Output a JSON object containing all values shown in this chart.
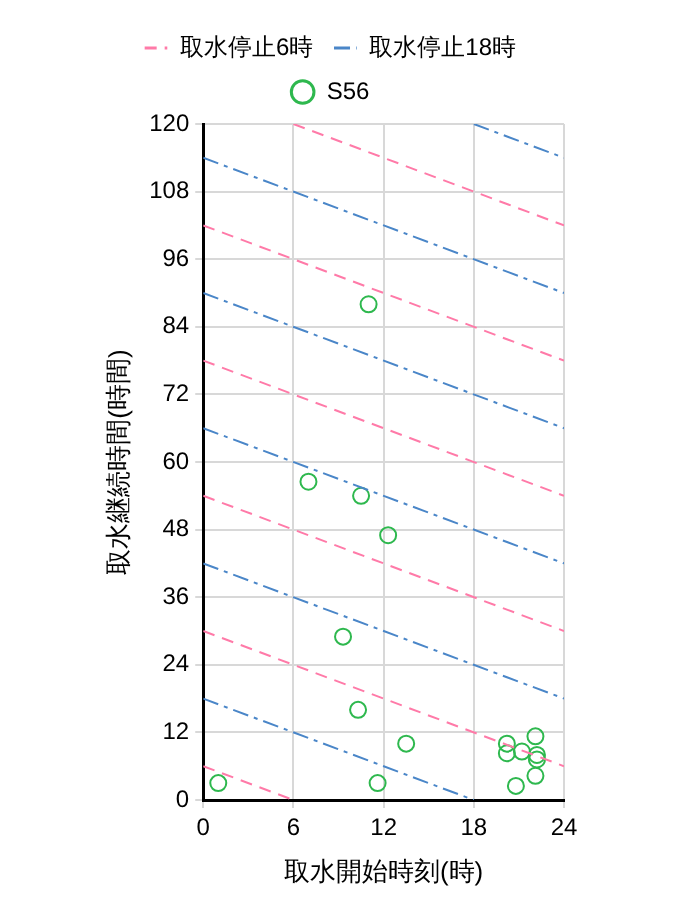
{
  "chart_data": {
    "type": "scatter",
    "xlabel": "取水開始時刻(時)",
    "ylabel": "取水継続時間(時間)",
    "xlim": [
      0,
      24
    ],
    "xticks": [
      0,
      6,
      12,
      18,
      24
    ],
    "ylim": [
      0,
      120
    ],
    "yticks": [
      0,
      12,
      24,
      36,
      48,
      60,
      72,
      84,
      96,
      108,
      120
    ],
    "grid": true,
    "legend": "top",
    "marker": "circle",
    "series": [
      {
        "name": "取水停止6時",
        "type": "line",
        "color": "#ff7aa8",
        "line_style": "dashed",
        "marker": "none",
        "x": [
          0,
          6
        ],
        "values": [
          6,
          0
        ]
      },
      {
        "type": "line",
        "color": "#ff7aa8",
        "line_style": "dashed",
        "marker": "none",
        "x": [
          0,
          24
        ],
        "values": [
          30,
          6
        ]
      },
      {
        "type": "line",
        "color": "#ff7aa8",
        "line_style": "dashed",
        "marker": "none",
        "x": [
          0,
          24
        ],
        "values": [
          54,
          30
        ]
      },
      {
        "type": "line",
        "color": "#ff7aa8",
        "line_style": "dashed",
        "marker": "none",
        "x": [
          0,
          24
        ],
        "values": [
          78,
          54
        ]
      },
      {
        "type": "line",
        "color": "#ff7aa8",
        "line_style": "dashed",
        "marker": "none",
        "x": [
          0,
          24
        ],
        "values": [
          102,
          78
        ]
      },
      {
        "type": "line",
        "color": "#ff7aa8",
        "line_style": "dashed",
        "marker": "none",
        "x": [
          6,
          24
        ],
        "values": [
          120,
          102
        ]
      },
      {
        "name": "取水停止18時",
        "type": "line",
        "color": "#4a86c8",
        "line_style": "dashdot",
        "marker": "none",
        "x": [
          0,
          18
        ],
        "values": [
          18,
          0
        ]
      },
      {
        "type": "line",
        "color": "#4a86c8",
        "line_style": "dashdot",
        "marker": "none",
        "x": [
          0,
          24
        ],
        "values": [
          42,
          18
        ]
      },
      {
        "type": "line",
        "color": "#4a86c8",
        "line_style": "dashdot",
        "marker": "none",
        "x": [
          0,
          24
        ],
        "values": [
          66,
          42
        ]
      },
      {
        "type": "line",
        "color": "#4a86c8",
        "line_style": "dashdot",
        "marker": "none",
        "x": [
          0,
          24
        ],
        "values": [
          90,
          66
        ]
      },
      {
        "type": "line",
        "color": "#4a86c8",
        "line_style": "dashdot",
        "marker": "none",
        "x": [
          0,
          24
        ],
        "values": [
          114,
          90
        ]
      },
      {
        "type": "line",
        "color": "#4a86c8",
        "line_style": "dashdot",
        "marker": "none",
        "x": [
          18,
          24
        ],
        "values": [
          120,
          114
        ]
      },
      {
        "name": "S56",
        "color": "#2eb84e",
        "x": [
          1,
          11,
          7,
          10.5,
          12.3,
          9.3,
          10.3,
          13.5,
          11.6,
          20.2,
          20.2,
          21.2,
          22.1,
          22.2,
          22.2,
          22.1,
          20.8
        ],
        "values": [
          3,
          88,
          56.5,
          54,
          47,
          29,
          16,
          10,
          3,
          10,
          8.3,
          8.6,
          11.3,
          8,
          7.2,
          4.3,
          2.5
        ]
      }
    ]
  }
}
